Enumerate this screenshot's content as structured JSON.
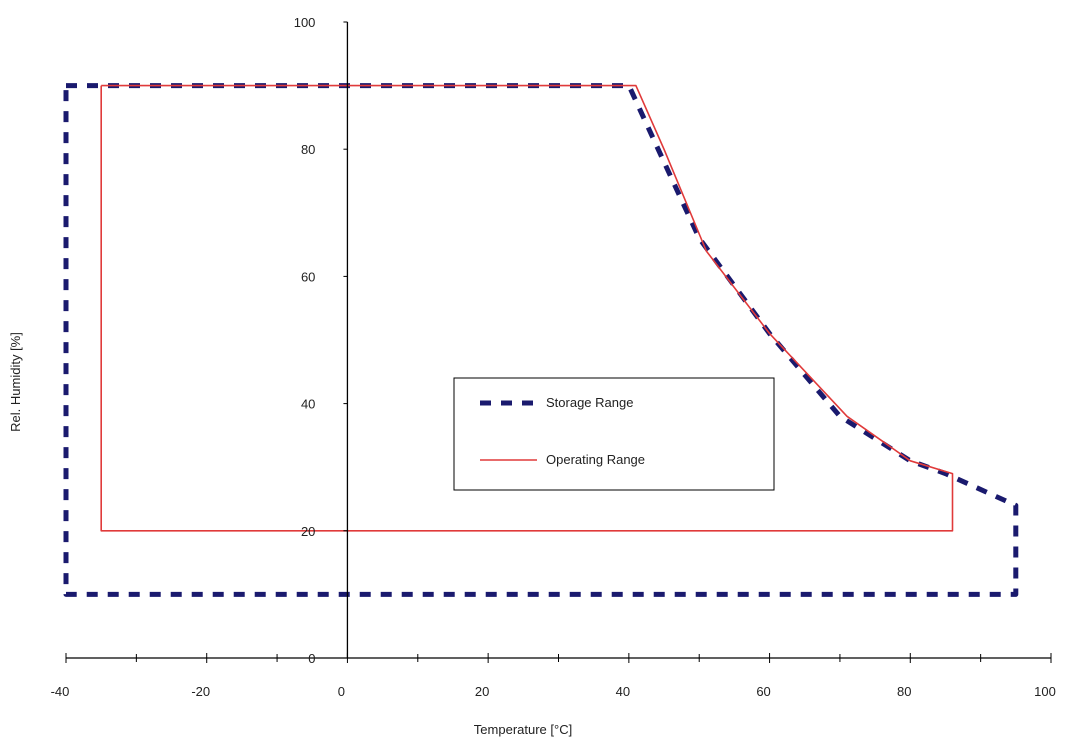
{
  "chart_data": {
    "type": "line",
    "title": "",
    "xlabel": "Temperature [°C]",
    "ylabel": "Rel. Humidity [%]",
    "xlim": [
      -40,
      100
    ],
    "ylim": [
      0,
      100
    ],
    "x_ticks": [
      -40,
      -20,
      0,
      20,
      40,
      60,
      80,
      100
    ],
    "y_ticks": [
      0,
      20,
      40,
      60,
      80,
      100
    ],
    "grid": false,
    "legend_position": "center-right",
    "series": [
      {
        "name": "Storage Range",
        "style": "dashed",
        "color": "#1a1a6e",
        "points": [
          [
            -40,
            90
          ],
          [
            40,
            90
          ],
          [
            45,
            78
          ],
          [
            50,
            66
          ],
          [
            60,
            51
          ],
          [
            70,
            38
          ],
          [
            80,
            31
          ],
          [
            85,
            29
          ],
          [
            95,
            24
          ],
          [
            95,
            10
          ],
          [
            -40,
            10
          ],
          [
            -40,
            90
          ]
        ]
      },
      {
        "name": "Operating Range",
        "style": "solid",
        "color": "#e03a3a",
        "points": [
          [
            -35,
            90
          ],
          [
            41,
            90
          ],
          [
            45,
            80
          ],
          [
            51,
            64
          ],
          [
            60,
            51
          ],
          [
            71,
            38
          ],
          [
            80,
            31
          ],
          [
            86,
            29
          ],
          [
            86,
            20
          ],
          [
            -35,
            20
          ],
          [
            -35,
            90
          ]
        ]
      }
    ]
  }
}
